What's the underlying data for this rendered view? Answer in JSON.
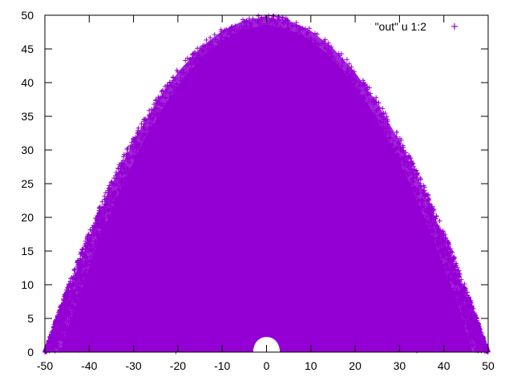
{
  "chart_data": {
    "type": "scatter",
    "title": "",
    "xlabel": "",
    "ylabel": "",
    "xlim": [
      -50,
      50
    ],
    "ylim": [
      0,
      50
    ],
    "xticks": [
      -50,
      -40,
      -30,
      -20,
      -10,
      0,
      10,
      20,
      30,
      40,
      50
    ],
    "yticks": [
      0,
      5,
      10,
      15,
      20,
      25,
      30,
      35,
      40,
      45,
      50
    ],
    "grid": false,
    "legend_position": "top-right",
    "marker": "plus",
    "series": [
      {
        "name": "\"out\" u 1:2",
        "color": "#9400D3",
        "region": {
          "shape": "parabolic dome",
          "vertex": [
            0,
            50
          ],
          "base_x_range": [
            -50,
            50
          ],
          "hole": {
            "center": [
              0,
              0
            ],
            "radius": 3
          }
        },
        "outline_points": [
          [
            -50,
            0
          ],
          [
            -48,
            4
          ],
          [
            -46,
            7.7
          ],
          [
            -44,
            11.3
          ],
          [
            -42,
            14.7
          ],
          [
            -40,
            18
          ],
          [
            -35,
            25.5
          ],
          [
            -30,
            32
          ],
          [
            -25,
            37.5
          ],
          [
            -20,
            42
          ],
          [
            -15,
            45.5
          ],
          [
            -10,
            48
          ],
          [
            -5,
            49.5
          ],
          [
            0,
            50
          ],
          [
            5,
            49.5
          ],
          [
            10,
            48
          ],
          [
            15,
            45.5
          ],
          [
            20,
            42
          ],
          [
            25,
            37.5
          ],
          [
            30,
            32
          ],
          [
            35,
            25.5
          ],
          [
            40,
            18
          ],
          [
            42,
            14.7
          ],
          [
            44,
            11.3
          ],
          [
            46,
            7.7
          ],
          [
            48,
            4
          ],
          [
            50,
            0
          ]
        ]
      }
    ]
  }
}
